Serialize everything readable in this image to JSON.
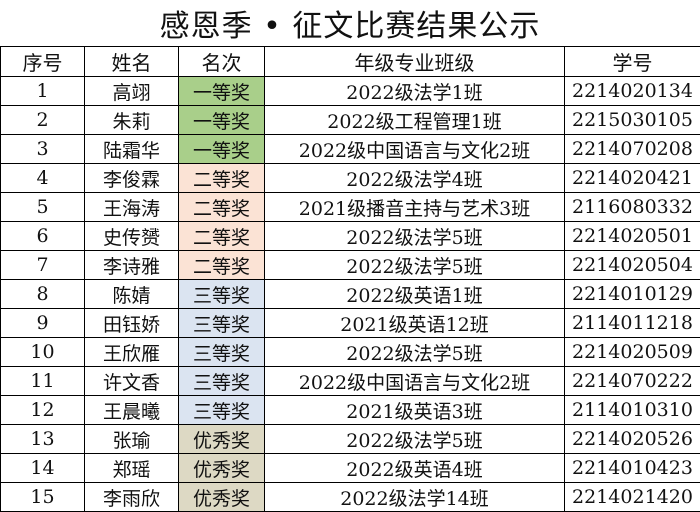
{
  "title": "感恩季 • 征文比赛结果公示",
  "headers": [
    "序号",
    "姓名",
    "名次",
    "年级专业班级",
    "学号"
  ],
  "award_colors": {
    "一等奖": "#a9cf8a",
    "二等奖": "#fbe3d5",
    "三等奖": "#dbe4f1",
    "优秀奖": "#ddd9c4"
  },
  "rows": [
    {
      "no": "1",
      "name": "高翊",
      "award": "一等奖",
      "award_level": 1,
      "class": "2022级法学1班",
      "id": "2214020134"
    },
    {
      "no": "2",
      "name": "朱莉",
      "award": "一等奖",
      "award_level": 1,
      "class": "2022级工程管理1班",
      "id": "2215030105"
    },
    {
      "no": "3",
      "name": "陆霜华",
      "award": "一等奖",
      "award_level": 1,
      "class": "2022级中国语言与文化2班",
      "id": "2214070208"
    },
    {
      "no": "4",
      "name": "李俊霖",
      "award": "二等奖",
      "award_level": 2,
      "class": "2022级法学4班",
      "id": "2214020421"
    },
    {
      "no": "5",
      "name": "王海涛",
      "award": "二等奖",
      "award_level": 2,
      "class": "2021级播音主持与艺术3班",
      "id": "2116080332"
    },
    {
      "no": "6",
      "name": "史传赟",
      "award": "二等奖",
      "award_level": 2,
      "class": "2022级法学5班",
      "id": "2214020501"
    },
    {
      "no": "7",
      "name": "李诗雅",
      "award": "二等奖",
      "award_level": 2,
      "class": "2022级法学5班",
      "id": "2214020504"
    },
    {
      "no": "8",
      "name": "陈婧",
      "award": "三等奖",
      "award_level": 3,
      "class": "2022级英语1班",
      "id": "2214010129"
    },
    {
      "no": "9",
      "name": "田钰娇",
      "award": "三等奖",
      "award_level": 3,
      "class": "2021级英语12班",
      "id": "2114011218"
    },
    {
      "no": "10",
      "name": "王欣雁",
      "award": "三等奖",
      "award_level": 3,
      "class": "2022级法学5班",
      "id": "2214020509"
    },
    {
      "no": "11",
      "name": "许文香",
      "award": "三等奖",
      "award_level": 3,
      "class": "2022级中国语言与文化2班",
      "id": "2214070222"
    },
    {
      "no": "12",
      "name": "王晨曦",
      "award": "三等奖",
      "award_level": 3,
      "class": "2021级英语3班",
      "id": "2114010310"
    },
    {
      "no": "13",
      "name": "张瑜",
      "award": "优秀奖",
      "award_level": 4,
      "class": "2022级法学5班",
      "id": "2214020526"
    },
    {
      "no": "14",
      "name": "郑瑶",
      "award": "优秀奖",
      "award_level": 4,
      "class": "2022级英语4班",
      "id": "2214010423"
    },
    {
      "no": "15",
      "name": "李雨欣",
      "award": "优秀奖",
      "award_level": 4,
      "class": "2022级法学14班",
      "id": "2214021420"
    }
  ]
}
